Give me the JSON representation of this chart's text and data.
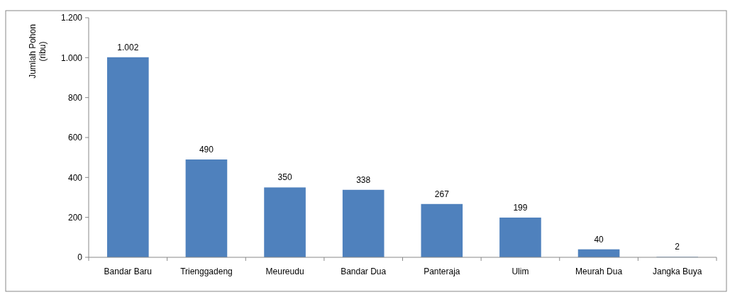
{
  "chart_data": {
    "type": "bar",
    "ylabel": "Jumlah Pohon\n(ribu)",
    "categories": [
      "Bandar Baru",
      "Trienggadeng",
      "Meureudu",
      "Bandar Dua",
      "Panteraja",
      "Ulim",
      "Meurah Dua",
      "Jangka Buya"
    ],
    "values": [
      1002,
      490,
      350,
      338,
      267,
      199,
      40,
      2
    ],
    "value_labels": [
      "1.002",
      "490",
      "350",
      "338",
      "267",
      "199",
      "40",
      "2"
    ],
    "color": "#4f81bd",
    "ylim": [
      0,
      1200
    ],
    "yticks": [
      0,
      200,
      400,
      600,
      800,
      {
        "value": 1000,
        "label": "1.000"
      },
      {
        "value": 1200,
        "label": "1.200"
      }
    ],
    "grid": false
  }
}
